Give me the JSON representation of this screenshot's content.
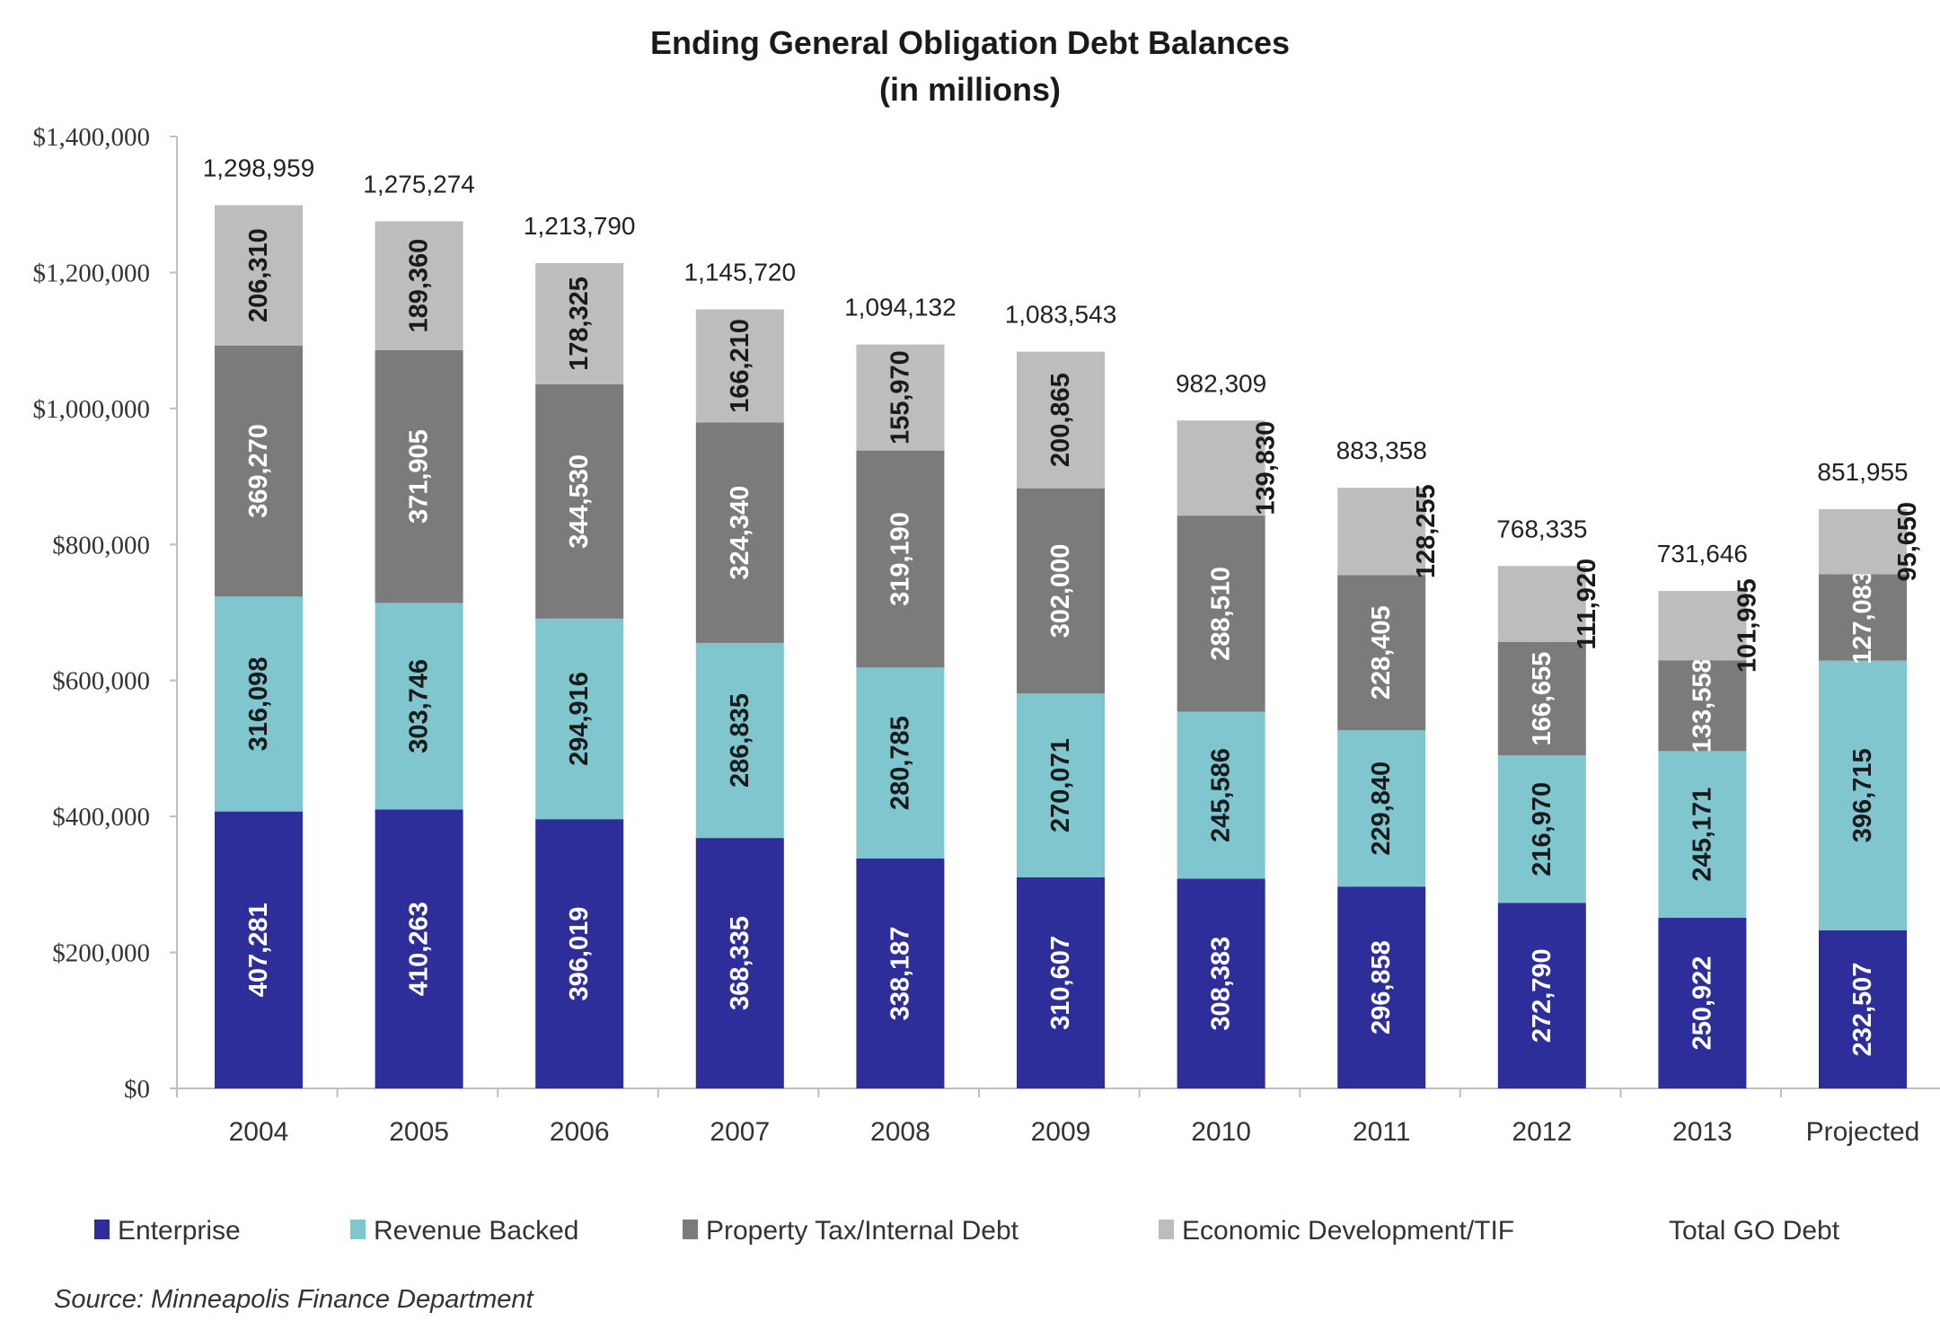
{
  "chart_data": {
    "type": "bar",
    "stacked": true,
    "title": "Ending General Obligation Debt Balances",
    "subtitle": "(in millions)",
    "xlabel": "",
    "ylabel": "",
    "ylim": [
      0,
      1400000
    ],
    "yticks": [
      0,
      200000,
      400000,
      600000,
      800000,
      1000000,
      1200000,
      1400000
    ],
    "ytick_labels": [
      "$0",
      "$200,000",
      "$400,000",
      "$600,000",
      "$800,000",
      "$1,000,000",
      "$1,200,000",
      "$1,400,000"
    ],
    "categories": [
      "2004",
      "2005",
      "2006",
      "2007",
      "2008",
      "2009",
      "2010",
      "2011",
      "2012",
      "2013",
      "Projected"
    ],
    "series": [
      {
        "name": "Enterprise",
        "color": "#2e2e9a",
        "label_color": "#ffffff",
        "values": [
          407281,
          410263,
          396019,
          368335,
          338187,
          310607,
          308383,
          296858,
          272790,
          250922,
          232507
        ],
        "labels": [
          "407,281",
          "410,263",
          "396,019",
          "368,335",
          "338,187",
          "310,607",
          "308,383",
          "296,858",
          "272,790",
          "250,922",
          "232,507"
        ]
      },
      {
        "name": "Revenue Backed",
        "color": "#7fc6cf",
        "label_color": "#1a1a1a",
        "values": [
          316098,
          303746,
          294916,
          286835,
          280785,
          270071,
          245586,
          229840,
          216970,
          245171,
          396715
        ],
        "labels": [
          "316,098",
          "303,746",
          "294,916",
          "286,835",
          "280,785",
          "270,071",
          "245,586",
          "229,840",
          "216,970",
          "245,171",
          "396,715"
        ]
      },
      {
        "name": "Property Tax/Internal Debt",
        "color": "#7b7b7b",
        "label_color": "#ffffff",
        "values": [
          369270,
          371905,
          344530,
          324340,
          319190,
          302000,
          288510,
          228405,
          166655,
          133558,
          127083
        ],
        "labels": [
          "369,270",
          "371,905",
          "344,530",
          "324,340",
          "319,190",
          "302,000",
          "288,510",
          "228,405",
          "166,655",
          "133,558",
          "127,083"
        ]
      },
      {
        "name": "Economic Development/TIF",
        "color": "#bdbdbd",
        "label_color": "#1a1a1a",
        "values": [
          206310,
          189360,
          178325,
          166210,
          155970,
          200865,
          139830,
          128255,
          111920,
          101995,
          95650
        ],
        "labels": [
          "206,310",
          "189,360",
          "178,325",
          "166,210",
          "155,970",
          "200,865",
          "139,830",
          "128,255",
          "111,920",
          "101,995",
          "95,650"
        ]
      }
    ],
    "totals": {
      "name": "Total GO Debt",
      "values": [
        1298959,
        1275274,
        1213790,
        1145720,
        1094132,
        1083543,
        982309,
        883358,
        768335,
        731646,
        851955
      ],
      "labels": [
        "1,298,959",
        "1,275,274",
        "1,213,790",
        "1,145,720",
        "1,094,132",
        "1,083,543",
        "982,309",
        "883,358",
        "768,335",
        "731,646",
        "851,955"
      ]
    },
    "legend": [
      "Enterprise",
      "Revenue Backed",
      "Property Tax/Internal Debt",
      "Economic Development/TIF",
      "Total GO Debt"
    ],
    "legend_position": "bottom",
    "grid": false,
    "source": "Source: Minneapolis Finance Department"
  }
}
